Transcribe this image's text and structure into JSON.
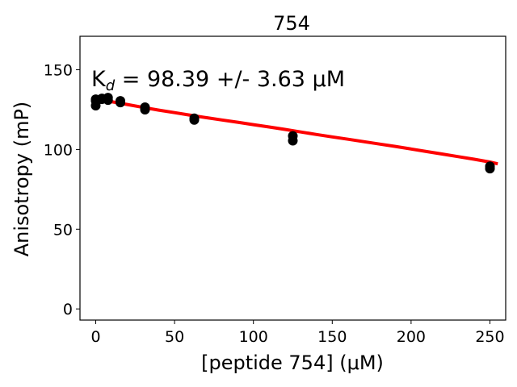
{
  "chart_data": {
    "type": "scatter",
    "title": "754",
    "xlabel": "[peptide 754] (μM)",
    "ylabel": "Anisotropy (mP)",
    "xlim": [
      -10,
      260
    ],
    "ylim": [
      -7,
      171
    ],
    "xticks": [
      0,
      50,
      100,
      150,
      200,
      250
    ],
    "yticks": [
      0,
      50,
      100,
      150
    ],
    "grid": false,
    "annotation": {
      "text": "K",
      "sub": "d",
      "rest": " = 98.39 +/- 3.63 μM"
    },
    "series": [
      {
        "kind": "points",
        "color": "#000000",
        "points": [
          [
            0,
            127.5
          ],
          [
            0,
            130.5
          ],
          [
            0,
            131.5
          ],
          [
            3.9,
            131.5
          ],
          [
            3.9,
            132.0
          ],
          [
            7.8,
            131.0
          ],
          [
            7.8,
            132.5
          ],
          [
            15.6,
            129.5
          ],
          [
            15.6,
            130.5
          ],
          [
            31.25,
            125.0
          ],
          [
            31.25,
            126.5
          ],
          [
            62.5,
            118.5
          ],
          [
            62.5,
            119.5
          ],
          [
            125,
            105.5
          ],
          [
            125,
            108.5
          ],
          [
            250,
            88.0
          ],
          [
            250,
            89.5
          ]
        ]
      },
      {
        "kind": "fit",
        "color": "#ff0000",
        "x": [
          0,
          10,
          20,
          30,
          40,
          50,
          60,
          70,
          80,
          90,
          100,
          110,
          120,
          130,
          140,
          150,
          160,
          170,
          180,
          190,
          200,
          210,
          220,
          230,
          240,
          250,
          255
        ],
        "y": [
          132.0,
          130.0,
          128.2,
          126.4,
          124.7,
          123.1,
          121.5,
          120.0,
          118.5,
          117.1,
          115.6,
          114.1,
          112.6,
          111.0,
          109.4,
          107.9,
          106.4,
          104.9,
          103.4,
          101.9,
          100.3,
          98.7,
          97.1,
          95.5,
          93.9,
          92.1,
          91.0
        ]
      }
    ]
  }
}
